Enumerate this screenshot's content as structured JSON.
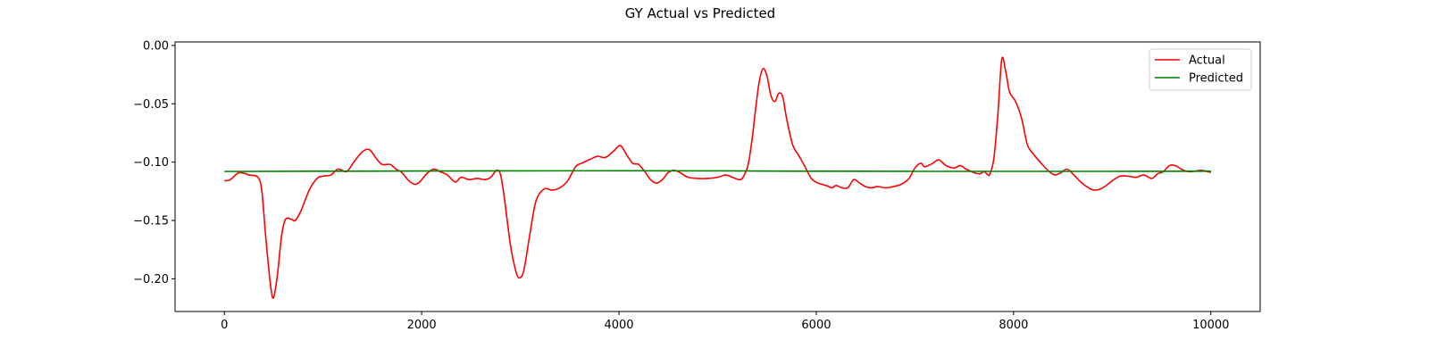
{
  "chart_data": {
    "type": "line",
    "title": "GY Actual vs Predicted",
    "xlabel": "",
    "ylabel": "",
    "xlim": [
      -500,
      10500
    ],
    "ylim": [
      -0.228,
      0.003
    ],
    "xticks": [
      0,
      2000,
      4000,
      6000,
      8000,
      10000
    ],
    "xtick_labels": [
      "0",
      "2000",
      "4000",
      "6000",
      "8000",
      "10000"
    ],
    "yticks": [
      0.0,
      -0.05,
      -0.1,
      -0.15,
      -0.2
    ],
    "ytick_labels": [
      "0.00",
      "−0.05",
      "−0.10",
      "−0.15",
      "−0.20"
    ],
    "grid": false,
    "legend_position": "upper-right",
    "series": [
      {
        "name": "Actual",
        "color": "#ff0000",
        "x": [
          0,
          60,
          150,
          250,
          340,
          380,
          420,
          470,
          500,
          540,
          580,
          620,
          680,
          720,
          780,
          860,
          940,
          1000,
          1080,
          1150,
          1240,
          1320,
          1400,
          1460,
          1500,
          1540,
          1600,
          1680,
          1740,
          1800,
          1870,
          1930,
          1980,
          2050,
          2120,
          2180,
          2260,
          2340,
          2400,
          2480,
          2560,
          2640,
          2700,
          2760,
          2800,
          2840,
          2900,
          2960,
          3000,
          3040,
          3100,
          3160,
          3240,
          3320,
          3400,
          3480,
          3560,
          3620,
          3700,
          3780,
          3860,
          3940,
          4000,
          4030,
          4080,
          4140,
          4200,
          4260,
          4320,
          4380,
          4440,
          4500,
          4560,
          4620,
          4700,
          4800,
          4900,
          5000,
          5080,
          5150,
          5230,
          5270,
          5310,
          5350,
          5380,
          5420,
          5460,
          5500,
          5540,
          5580,
          5620,
          5660,
          5700,
          5760,
          5820,
          5880,
          5950,
          6020,
          6100,
          6160,
          6200,
          6260,
          6320,
          6380,
          6440,
          6500,
          6560,
          6620,
          6700,
          6780,
          6860,
          6940,
          7000,
          7060,
          7100,
          7180,
          7240,
          7300,
          7340,
          7400,
          7460,
          7520,
          7600,
          7660,
          7700,
          7740,
          7760,
          7800,
          7840,
          7880,
          7920,
          7960,
          8020,
          8080,
          8140,
          8200,
          8280,
          8360,
          8420,
          8480,
          8540,
          8600,
          8680,
          8760,
          8820,
          8880,
          8940,
          9000,
          9080,
          9160,
          9240,
          9320,
          9400,
          9460,
          9520,
          9580,
          9640,
          9700,
          9760,
          9820,
          9900,
          9960,
          10000
        ],
        "y": [
          -0.116,
          -0.115,
          -0.109,
          -0.111,
          -0.113,
          -0.125,
          -0.165,
          -0.207,
          -0.216,
          -0.195,
          -0.163,
          -0.149,
          -0.149,
          -0.15,
          -0.141,
          -0.124,
          -0.114,
          -0.112,
          -0.111,
          -0.106,
          -0.108,
          -0.099,
          -0.091,
          -0.089,
          -0.092,
          -0.097,
          -0.102,
          -0.102,
          -0.106,
          -0.109,
          -0.116,
          -0.119,
          -0.117,
          -0.11,
          -0.106,
          -0.108,
          -0.111,
          -0.117,
          -0.113,
          -0.115,
          -0.114,
          -0.115,
          -0.113,
          -0.107,
          -0.111,
          -0.132,
          -0.171,
          -0.195,
          -0.199,
          -0.191,
          -0.16,
          -0.133,
          -0.123,
          -0.124,
          -0.122,
          -0.116,
          -0.104,
          -0.101,
          -0.098,
          -0.095,
          -0.096,
          -0.091,
          -0.086,
          -0.087,
          -0.094,
          -0.101,
          -0.102,
          -0.108,
          -0.115,
          -0.118,
          -0.115,
          -0.109,
          -0.107,
          -0.109,
          -0.113,
          -0.114,
          -0.114,
          -0.113,
          -0.111,
          -0.113,
          -0.115,
          -0.111,
          -0.102,
          -0.08,
          -0.058,
          -0.032,
          -0.02,
          -0.026,
          -0.043,
          -0.048,
          -0.041,
          -0.044,
          -0.063,
          -0.085,
          -0.094,
          -0.103,
          -0.114,
          -0.118,
          -0.12,
          -0.122,
          -0.12,
          -0.122,
          -0.122,
          -0.115,
          -0.118,
          -0.121,
          -0.122,
          -0.121,
          -0.122,
          -0.121,
          -0.119,
          -0.114,
          -0.105,
          -0.101,
          -0.104,
          -0.101,
          -0.098,
          -0.102,
          -0.104,
          -0.105,
          -0.103,
          -0.106,
          -0.109,
          -0.11,
          -0.108,
          -0.111,
          -0.11,
          -0.097,
          -0.06,
          -0.012,
          -0.022,
          -0.04,
          -0.048,
          -0.062,
          -0.085,
          -0.093,
          -0.101,
          -0.108,
          -0.111,
          -0.109,
          -0.106,
          -0.11,
          -0.117,
          -0.122,
          -0.124,
          -0.123,
          -0.12,
          -0.116,
          -0.112,
          -0.112,
          -0.113,
          -0.111,
          -0.114,
          -0.11,
          -0.108,
          -0.103,
          -0.103,
          -0.106,
          -0.108,
          -0.108,
          -0.107,
          -0.108,
          -0.109
        ]
      },
      {
        "name": "Predicted",
        "color": "#008000",
        "x": [
          0,
          1000,
          2000,
          3000,
          4000,
          5000,
          6000,
          7000,
          8000,
          9000,
          10000
        ],
        "y": [
          -0.108,
          -0.1078,
          -0.1076,
          -0.1075,
          -0.1074,
          -0.1075,
          -0.1078,
          -0.1079,
          -0.1079,
          -0.1079,
          -0.1078
        ]
      }
    ]
  }
}
